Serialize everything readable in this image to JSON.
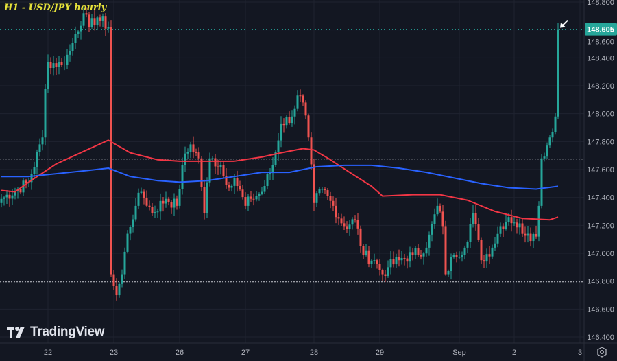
{
  "title": "H1 - USD/JPY hourly",
  "brand": "TradingView",
  "icons": {
    "settings": "gear-icon",
    "arrow": "arrow-down-left-icon"
  },
  "colors": {
    "up": "#26a69a",
    "down": "#ef5350",
    "ma_red": "#f23645",
    "ma_blue": "#2962ff",
    "background": "#131722",
    "price_label": "#26a69a"
  },
  "chart_data": {
    "type": "candlestick",
    "title": "H1 - USD/JPY hourly",
    "ylim": [
      146.4,
      148.8
    ],
    "y_ticks": [
      "148.800",
      "148.600",
      "148.400",
      "148.200",
      "148.000",
      "147.800",
      "147.600",
      "147.400",
      "147.200",
      "147.000",
      "146.800",
      "146.600",
      "146.400"
    ],
    "x_ticks": [
      {
        "label": "22",
        "hour": 17
      },
      {
        "label": "23",
        "hour": 41
      },
      {
        "label": "26",
        "hour": 65
      },
      {
        "label": "27",
        "hour": 89
      },
      {
        "label": "28",
        "hour": 114
      },
      {
        "label": "29",
        "hour": 138
      },
      {
        "label": "Sep",
        "hour": 167
      },
      {
        "label": "2",
        "hour": 187
      },
      {
        "label": "3",
        "hour": 211
      }
    ],
    "last_price": "148.605",
    "last_price_value": 148.605,
    "hlines": [
      147.675,
      146.795
    ],
    "close_anchors": [
      [
        0,
        147.39
      ],
      [
        10,
        147.51
      ],
      [
        15,
        147.83
      ],
      [
        16,
        148.18
      ],
      [
        17,
        148.37
      ],
      [
        22,
        148.35
      ],
      [
        25,
        148.45
      ],
      [
        27,
        148.57
      ],
      [
        30,
        148.72
      ],
      [
        32,
        148.62
      ],
      [
        35,
        148.69
      ],
      [
        39,
        148.62
      ],
      [
        40,
        146.85
      ],
      [
        42,
        146.7
      ],
      [
        44,
        146.85
      ],
      [
        46,
        147.14
      ],
      [
        49,
        147.34
      ],
      [
        51,
        147.44
      ],
      [
        55,
        147.29
      ],
      [
        60,
        147.39
      ],
      [
        64,
        147.34
      ],
      [
        66,
        147.63
      ],
      [
        69,
        147.78
      ],
      [
        72,
        147.68
      ],
      [
        74,
        147.29
      ],
      [
        76,
        147.68
      ],
      [
        80,
        147.63
      ],
      [
        82,
        147.49
      ],
      [
        85,
        147.54
      ],
      [
        89,
        147.34
      ],
      [
        91,
        147.39
      ],
      [
        95,
        147.44
      ],
      [
        99,
        147.63
      ],
      [
        102,
        147.93
      ],
      [
        106,
        147.98
      ],
      [
        108,
        148.13
      ],
      [
        110,
        148.08
      ],
      [
        112,
        147.83
      ],
      [
        114,
        147.36
      ],
      [
        117,
        147.46
      ],
      [
        121,
        147.34
      ],
      [
        125,
        147.19
      ],
      [
        129,
        147.24
      ],
      [
        132,
        146.99
      ],
      [
        136,
        146.95
      ],
      [
        139,
        146.85
      ],
      [
        141,
        146.9
      ],
      [
        145,
        146.95
      ],
      [
        150,
        146.99
      ],
      [
        155,
        147.04
      ],
      [
        159,
        147.34
      ],
      [
        161,
        147.19
      ],
      [
        162,
        146.85
      ],
      [
        165,
        146.99
      ],
      [
        169,
        147.04
      ],
      [
        172,
        147.29
      ],
      [
        175,
        146.95
      ],
      [
        179,
        147.04
      ],
      [
        182,
        147.19
      ],
      [
        185,
        147.26
      ],
      [
        187,
        147.22
      ],
      [
        192,
        147.14
      ],
      [
        195,
        147.12
      ],
      [
        196,
        147.34
      ],
      [
        197,
        147.68
      ],
      [
        200,
        147.83
      ],
      [
        202,
        147.98
      ],
      [
        203,
        148.605
      ]
    ],
    "series": [
      {
        "name": "ma_red",
        "points": [
          [
            0,
            147.45
          ],
          [
            5,
            147.44
          ],
          [
            10,
            147.51
          ],
          [
            20,
            147.64
          ],
          [
            30,
            147.73
          ],
          [
            39,
            147.81
          ],
          [
            47,
            147.72
          ],
          [
            57,
            147.67
          ],
          [
            65,
            147.66
          ],
          [
            75,
            147.66
          ],
          [
            85,
            147.66
          ],
          [
            95,
            147.69
          ],
          [
            102,
            147.72
          ],
          [
            110,
            147.75
          ],
          [
            114,
            147.74
          ],
          [
            120,
            147.67
          ],
          [
            127,
            147.58
          ],
          [
            135,
            147.48
          ],
          [
            139,
            147.41
          ],
          [
            150,
            147.42
          ],
          [
            160,
            147.42
          ],
          [
            170,
            147.38
          ],
          [
            180,
            147.3
          ],
          [
            190,
            147.25
          ],
          [
            200,
            147.24
          ],
          [
            203,
            147.26
          ]
        ]
      },
      {
        "name": "ma_blue",
        "points": [
          [
            0,
            147.55
          ],
          [
            10,
            147.55
          ],
          [
            20,
            147.57
          ],
          [
            30,
            147.59
          ],
          [
            39,
            147.61
          ],
          [
            47,
            147.55
          ],
          [
            57,
            147.52
          ],
          [
            65,
            147.51
          ],
          [
            75,
            147.52
          ],
          [
            85,
            147.55
          ],
          [
            95,
            147.58
          ],
          [
            105,
            147.58
          ],
          [
            115,
            147.62
          ],
          [
            125,
            147.63
          ],
          [
            135,
            147.63
          ],
          [
            145,
            147.61
          ],
          [
            155,
            147.58
          ],
          [
            165,
            147.54
          ],
          [
            175,
            147.5
          ],
          [
            185,
            147.47
          ],
          [
            195,
            147.46
          ],
          [
            203,
            147.48
          ]
        ]
      }
    ]
  }
}
